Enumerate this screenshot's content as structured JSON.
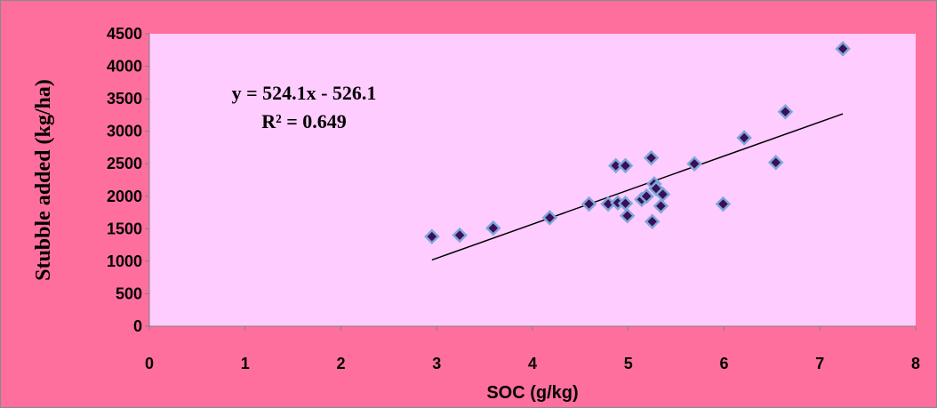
{
  "chart_data": {
    "type": "scatter",
    "title": "",
    "xlabel": "SOC (g/kg)",
    "ylabel": "Stubble added  (kg/ha)",
    "xlim": [
      0,
      8
    ],
    "ylim": [
      0,
      4500
    ],
    "x_ticks": [
      0,
      1,
      2,
      3,
      4,
      5,
      6,
      7,
      8
    ],
    "y_ticks": [
      0,
      500,
      1000,
      1500,
      2000,
      2500,
      3000,
      3500,
      4000,
      4500
    ],
    "grid": false,
    "legend": "none",
    "series": [
      {
        "points": [
          {
            "x": 2.95,
            "y": 1380
          },
          {
            "x": 3.24,
            "y": 1400
          },
          {
            "x": 3.59,
            "y": 1510
          },
          {
            "x": 4.18,
            "y": 1670
          },
          {
            "x": 4.59,
            "y": 1880
          },
          {
            "x": 4.79,
            "y": 1880
          },
          {
            "x": 4.87,
            "y": 2470
          },
          {
            "x": 4.89,
            "y": 1900
          },
          {
            "x": 4.97,
            "y": 2470
          },
          {
            "x": 4.97,
            "y": 1890
          },
          {
            "x": 4.99,
            "y": 1700
          },
          {
            "x": 5.14,
            "y": 1950
          },
          {
            "x": 5.19,
            "y": 2000
          },
          {
            "x": 5.24,
            "y": 2590
          },
          {
            "x": 5.25,
            "y": 1610
          },
          {
            "x": 5.27,
            "y": 2190
          },
          {
            "x": 5.29,
            "y": 2120
          },
          {
            "x": 5.34,
            "y": 1850
          },
          {
            "x": 5.36,
            "y": 2030
          },
          {
            "x": 5.69,
            "y": 2500
          },
          {
            "x": 5.99,
            "y": 1880
          },
          {
            "x": 6.21,
            "y": 2900
          },
          {
            "x": 6.54,
            "y": 2520
          },
          {
            "x": 6.64,
            "y": 3300
          },
          {
            "x": 7.24,
            "y": 4270
          }
        ]
      }
    ],
    "trendline": {
      "slope": 524.1,
      "intercept": -526.1,
      "x_range": [
        2.95,
        7.24
      ]
    },
    "annotations": {
      "equation": "y = 524.1x - 526.1",
      "r_squared": "R² = 0.649"
    },
    "colors": {
      "outer_background": "#ff6f9e",
      "plot_background": "#ffccff",
      "marker_fill": "#3a0f57",
      "marker_stroke": "#7fa6d8",
      "trendline": "#000000"
    }
  }
}
